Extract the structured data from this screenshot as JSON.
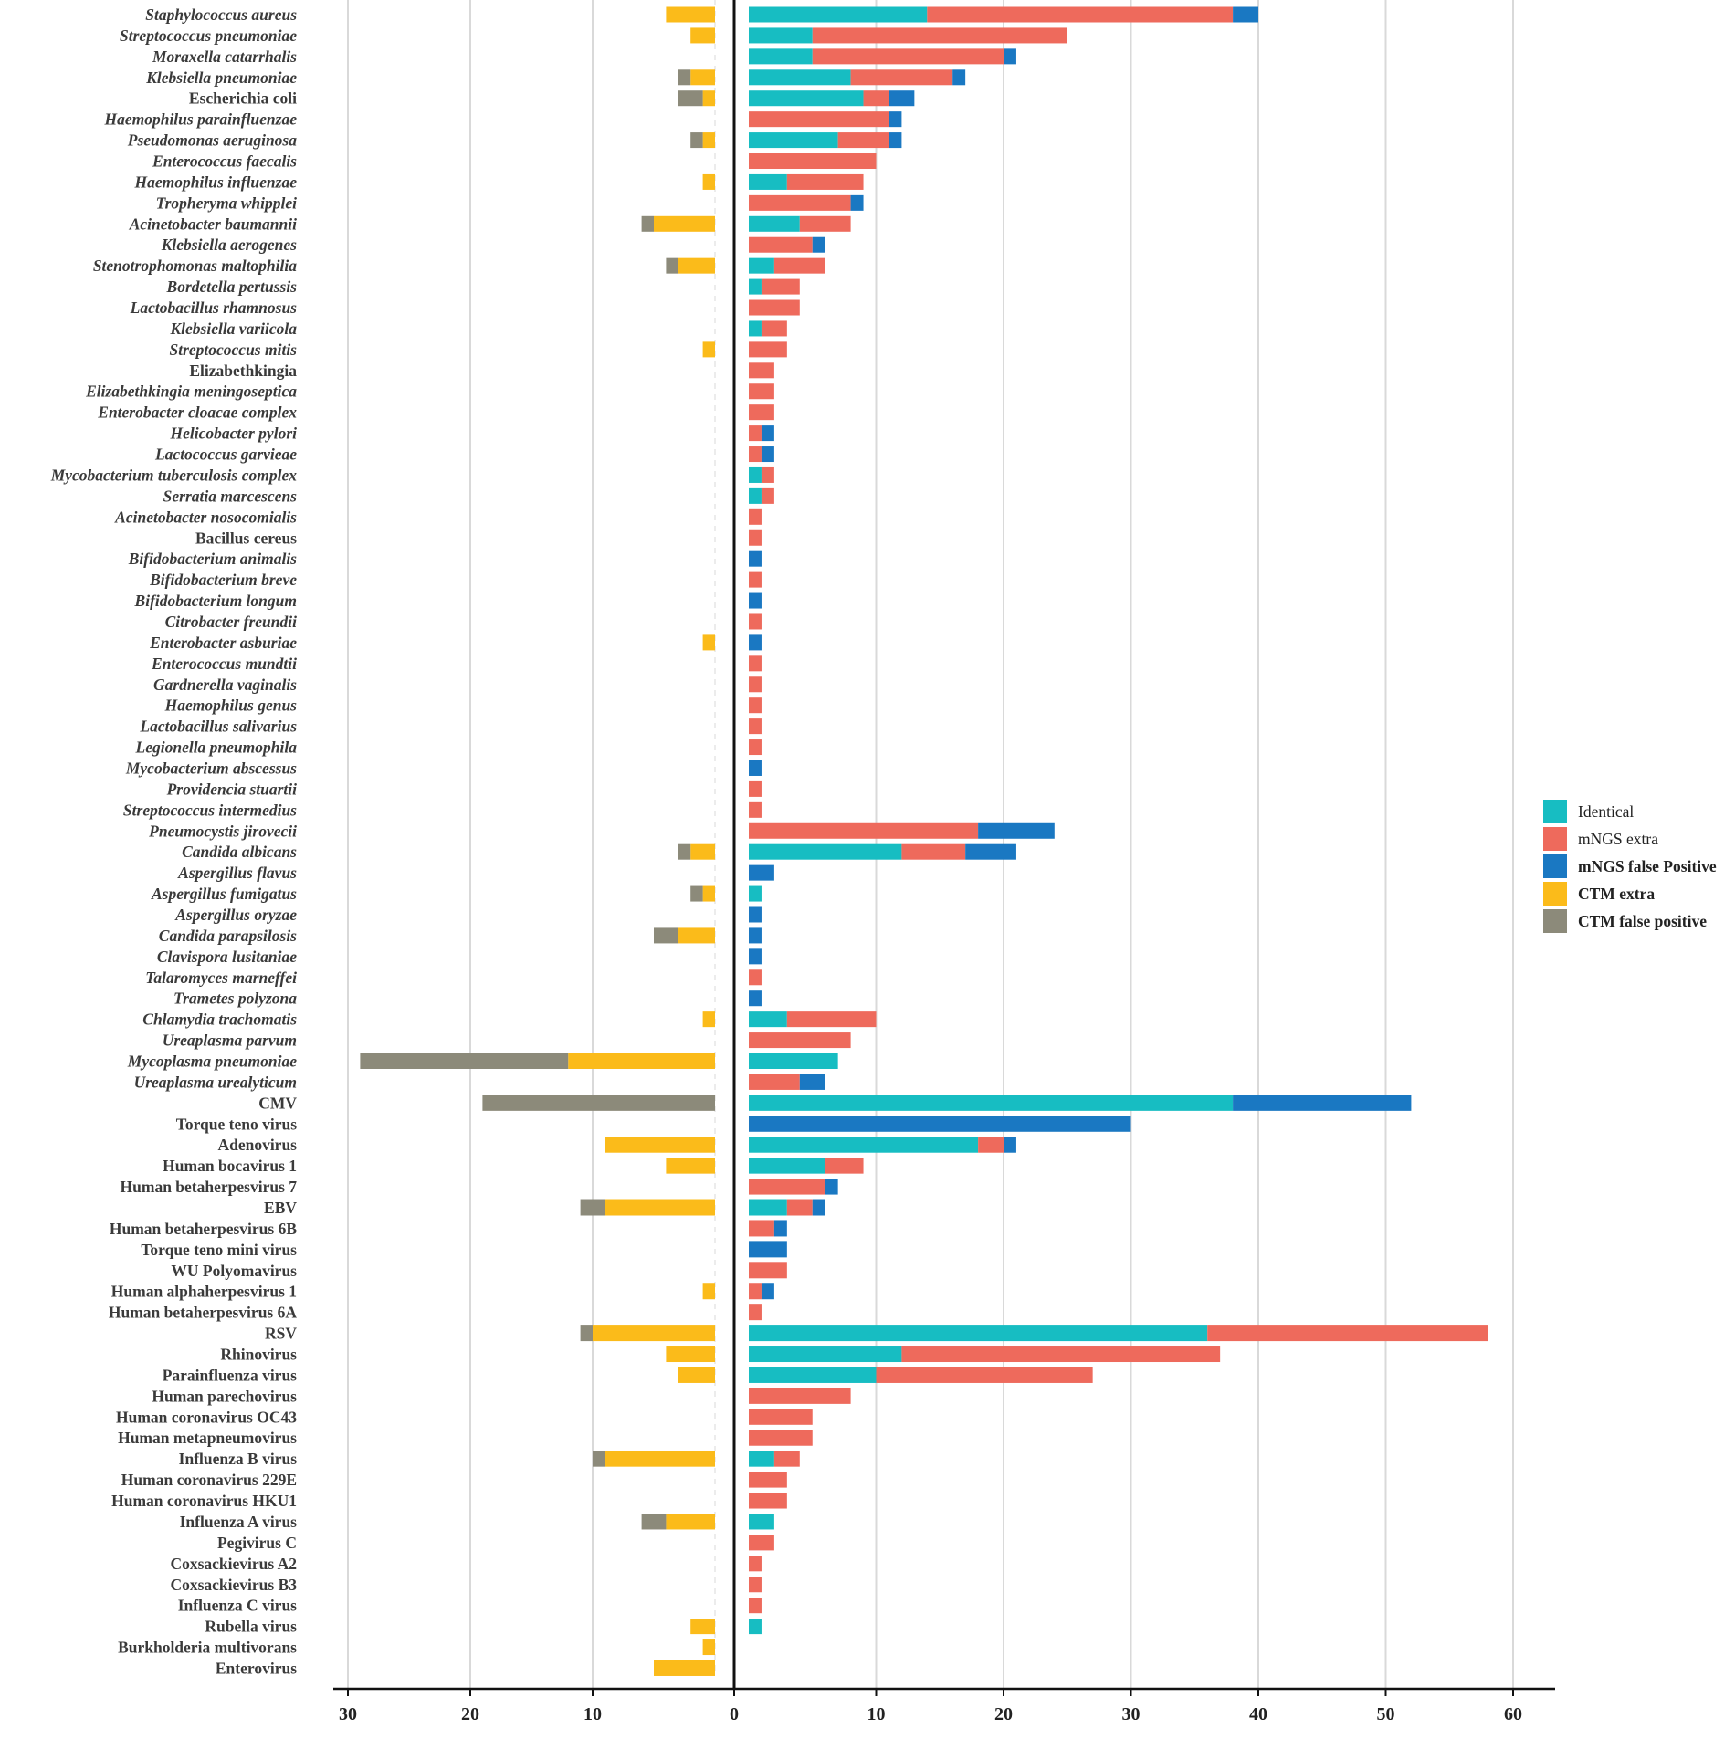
{
  "chart_data": {
    "type": "bar",
    "orientation": "horizontal",
    "stacked": true,
    "diverging": true,
    "title": "",
    "xlabel": "",
    "ylabel": "",
    "left_axis": {
      "ticks": [
        30,
        20,
        10,
        0
      ],
      "range": [
        30,
        0
      ]
    },
    "right_axis": {
      "ticks": [
        0,
        10,
        20,
        30,
        40,
        50,
        60
      ],
      "range": [
        0,
        62
      ]
    },
    "grid": true,
    "legend_position": "right",
    "legend": [
      {
        "key": "identical",
        "label": "Identical",
        "color": "#17bdc2"
      },
      {
        "key": "mngs_extra",
        "label": "mNGS extra",
        "color": "#ee6a5c"
      },
      {
        "key": "mngs_fp",
        "label": "mNGS false Positive",
        "color": "#1a78c2"
      },
      {
        "key": "ctm_extra",
        "label": "CTM extra",
        "color": "#fbbb1a"
      },
      {
        "key": "ctm_fp",
        "label": "CTM false positive",
        "color": "#8c8a7a"
      }
    ],
    "categories": [
      {
        "name": "Staphylococcus aureus",
        "italic": true,
        "identical": 14,
        "mngs_extra": 24,
        "mngs_fp": 2,
        "ctm_extra": 4,
        "ctm_fp": 0
      },
      {
        "name": "Streptococcus pneumoniae",
        "italic": true,
        "identical": 5,
        "mngs_extra": 20,
        "mngs_fp": 0,
        "ctm_extra": 2,
        "ctm_fp": 0
      },
      {
        "name": "Moraxella catarrhalis",
        "italic": true,
        "identical": 5,
        "mngs_extra": 15,
        "mngs_fp": 1,
        "ctm_extra": 0,
        "ctm_fp": 0
      },
      {
        "name": "Klebsiella pneumoniae",
        "italic": true,
        "identical": 8,
        "mngs_extra": 8,
        "mngs_fp": 1,
        "ctm_extra": 2,
        "ctm_fp": 1
      },
      {
        "name": "Escherichia coli",
        "italic": false,
        "identical": 9,
        "mngs_extra": 2,
        "mngs_fp": 2,
        "ctm_extra": 1,
        "ctm_fp": 2
      },
      {
        "name": "Haemophilus parainfluenzae",
        "italic": true,
        "identical": 0,
        "mngs_extra": 11,
        "mngs_fp": 1,
        "ctm_extra": 0,
        "ctm_fp": 0
      },
      {
        "name": "Pseudomonas aeruginosa",
        "italic": true,
        "identical": 7,
        "mngs_extra": 4,
        "mngs_fp": 1,
        "ctm_extra": 1,
        "ctm_fp": 1
      },
      {
        "name": "Enterococcus faecalis",
        "italic": true,
        "identical": 0,
        "mngs_extra": 10,
        "mngs_fp": 0,
        "ctm_extra": 0,
        "ctm_fp": 0
      },
      {
        "name": "Haemophilus influenzae",
        "italic": true,
        "identical": 3,
        "mngs_extra": 6,
        "mngs_fp": 0,
        "ctm_extra": 1,
        "ctm_fp": 0
      },
      {
        "name": "Tropheryma whipplei",
        "italic": true,
        "identical": 0,
        "mngs_extra": 8,
        "mngs_fp": 1,
        "ctm_extra": 0,
        "ctm_fp": 0
      },
      {
        "name": "Acinetobacter baumannii",
        "italic": true,
        "identical": 4,
        "mngs_extra": 4,
        "mngs_fp": 0,
        "ctm_extra": 5,
        "ctm_fp": 1
      },
      {
        "name": "Klebsiella aerogenes",
        "italic": true,
        "identical": 0,
        "mngs_extra": 5,
        "mngs_fp": 1,
        "ctm_extra": 0,
        "ctm_fp": 0
      },
      {
        "name": "Stenotrophomonas maltophilia",
        "italic": true,
        "identical": 2,
        "mngs_extra": 4,
        "mngs_fp": 0,
        "ctm_extra": 3,
        "ctm_fp": 1
      },
      {
        "name": "Bordetella pertussis",
        "italic": true,
        "identical": 1,
        "mngs_extra": 3,
        "mngs_fp": 0,
        "ctm_extra": 0,
        "ctm_fp": 0
      },
      {
        "name": "Lactobacillus rhamnosus",
        "italic": true,
        "identical": 0,
        "mngs_extra": 4,
        "mngs_fp": 0,
        "ctm_extra": 0,
        "ctm_fp": 0
      },
      {
        "name": "Klebsiella variicola",
        "italic": true,
        "identical": 1,
        "mngs_extra": 2,
        "mngs_fp": 0,
        "ctm_extra": 0,
        "ctm_fp": 0
      },
      {
        "name": "Streptococcus mitis",
        "italic": true,
        "identical": 0,
        "mngs_extra": 3,
        "mngs_fp": 0,
        "ctm_extra": 1,
        "ctm_fp": 0
      },
      {
        "name": "Elizabethkingia",
        "italic": false,
        "identical": 0,
        "mngs_extra": 2,
        "mngs_fp": 0,
        "ctm_extra": 0,
        "ctm_fp": 0
      },
      {
        "name": "Elizabethkingia meningoseptica",
        "italic": true,
        "identical": 0,
        "mngs_extra": 2,
        "mngs_fp": 0,
        "ctm_extra": 0,
        "ctm_fp": 0
      },
      {
        "name": "Enterobacter cloacae complex",
        "italic": true,
        "identical": 0,
        "mngs_extra": 2,
        "mngs_fp": 0,
        "ctm_extra": 0,
        "ctm_fp": 0
      },
      {
        "name": "Helicobacter pylori",
        "italic": true,
        "identical": 0,
        "mngs_extra": 1,
        "mngs_fp": 1,
        "ctm_extra": 0,
        "ctm_fp": 0
      },
      {
        "name": "Lactococcus garvieae",
        "italic": true,
        "identical": 0,
        "mngs_extra": 1,
        "mngs_fp": 1,
        "ctm_extra": 0,
        "ctm_fp": 0
      },
      {
        "name": "Mycobacterium tuberculosis complex",
        "italic": true,
        "identical": 1,
        "mngs_extra": 1,
        "mngs_fp": 0,
        "ctm_extra": 0,
        "ctm_fp": 0
      },
      {
        "name": "Serratia marcescens",
        "italic": true,
        "identical": 1,
        "mngs_extra": 1,
        "mngs_fp": 0,
        "ctm_extra": 0,
        "ctm_fp": 0
      },
      {
        "name": "Acinetobacter nosocomialis",
        "italic": true,
        "identical": 0,
        "mngs_extra": 1,
        "mngs_fp": 0,
        "ctm_extra": 0,
        "ctm_fp": 0
      },
      {
        "name": "Bacillus cereus",
        "italic": false,
        "identical": 0,
        "mngs_extra": 1,
        "mngs_fp": 0,
        "ctm_extra": 0,
        "ctm_fp": 0
      },
      {
        "name": "Bifidobacterium animalis",
        "italic": true,
        "identical": 0,
        "mngs_extra": 0,
        "mngs_fp": 1,
        "ctm_extra": 0,
        "ctm_fp": 0
      },
      {
        "name": "Bifidobacterium breve",
        "italic": true,
        "identical": 0,
        "mngs_extra": 1,
        "mngs_fp": 0,
        "ctm_extra": 0,
        "ctm_fp": 0
      },
      {
        "name": "Bifidobacterium longum",
        "italic": true,
        "identical": 0,
        "mngs_extra": 0,
        "mngs_fp": 1,
        "ctm_extra": 0,
        "ctm_fp": 0
      },
      {
        "name": "Citrobacter freundii",
        "italic": true,
        "identical": 0,
        "mngs_extra": 1,
        "mngs_fp": 0,
        "ctm_extra": 0,
        "ctm_fp": 0
      },
      {
        "name": "Enterobacter asburiae",
        "italic": true,
        "identical": 0,
        "mngs_extra": 0,
        "mngs_fp": 1,
        "ctm_extra": 1,
        "ctm_fp": 0
      },
      {
        "name": "Enterococcus mundtii",
        "italic": true,
        "identical": 0,
        "mngs_extra": 1,
        "mngs_fp": 0,
        "ctm_extra": 0,
        "ctm_fp": 0
      },
      {
        "name": "Gardnerella vaginalis",
        "italic": true,
        "identical": 0,
        "mngs_extra": 1,
        "mngs_fp": 0,
        "ctm_extra": 0,
        "ctm_fp": 0
      },
      {
        "name": "Haemophilus genus",
        "italic": true,
        "identical": 0,
        "mngs_extra": 1,
        "mngs_fp": 0,
        "ctm_extra": 0,
        "ctm_fp": 0
      },
      {
        "name": "Lactobacillus salivarius",
        "italic": true,
        "identical": 0,
        "mngs_extra": 1,
        "mngs_fp": 0,
        "ctm_extra": 0,
        "ctm_fp": 0
      },
      {
        "name": "Legionella pneumophila",
        "italic": true,
        "identical": 0,
        "mngs_extra": 1,
        "mngs_fp": 0,
        "ctm_extra": 0,
        "ctm_fp": 0
      },
      {
        "name": "Mycobacterium abscessus",
        "italic": true,
        "identical": 0,
        "mngs_extra": 0,
        "mngs_fp": 1,
        "ctm_extra": 0,
        "ctm_fp": 0
      },
      {
        "name": "Providencia stuartii",
        "italic": true,
        "identical": 0,
        "mngs_extra": 1,
        "mngs_fp": 0,
        "ctm_extra": 0,
        "ctm_fp": 0
      },
      {
        "name": "Streptococcus intermedius",
        "italic": true,
        "identical": 0,
        "mngs_extra": 1,
        "mngs_fp": 0,
        "ctm_extra": 0,
        "ctm_fp": 0
      },
      {
        "name": "Pneumocystis jirovecii",
        "italic": true,
        "identical": 0,
        "mngs_extra": 18,
        "mngs_fp": 6,
        "ctm_extra": 0,
        "ctm_fp": 0
      },
      {
        "name": "Candida albicans",
        "italic": true,
        "identical": 12,
        "mngs_extra": 5,
        "mngs_fp": 4,
        "ctm_extra": 2,
        "ctm_fp": 1
      },
      {
        "name": "Aspergillus flavus",
        "italic": true,
        "identical": 0,
        "mngs_extra": 0,
        "mngs_fp": 2,
        "ctm_extra": 0,
        "ctm_fp": 0
      },
      {
        "name": "Aspergillus fumigatus",
        "italic": true,
        "identical": 1,
        "mngs_extra": 0,
        "mngs_fp": 0,
        "ctm_extra": 1,
        "ctm_fp": 1
      },
      {
        "name": "Aspergillus oryzae",
        "italic": true,
        "identical": 0,
        "mngs_extra": 0,
        "mngs_fp": 1,
        "ctm_extra": 0,
        "ctm_fp": 0
      },
      {
        "name": "Candida parapsilosis",
        "italic": true,
        "identical": 0,
        "mngs_extra": 0,
        "mngs_fp": 1,
        "ctm_extra": 3,
        "ctm_fp": 2
      },
      {
        "name": "Clavispora lusitaniae",
        "italic": true,
        "identical": 0,
        "mngs_extra": 0,
        "mngs_fp": 1,
        "ctm_extra": 0,
        "ctm_fp": 0
      },
      {
        "name": "Talaromyces marneffei",
        "italic": true,
        "identical": 0,
        "mngs_extra": 1,
        "mngs_fp": 0,
        "ctm_extra": 0,
        "ctm_fp": 0
      },
      {
        "name": "Trametes polyzona",
        "italic": true,
        "identical": 0,
        "mngs_extra": 0,
        "mngs_fp": 1,
        "ctm_extra": 0,
        "ctm_fp": 0
      },
      {
        "name": "Chlamydia trachomatis",
        "italic": true,
        "identical": 3,
        "mngs_extra": 7,
        "mngs_fp": 0,
        "ctm_extra": 1,
        "ctm_fp": 0
      },
      {
        "name": "Ureaplasma parvum",
        "italic": true,
        "identical": 0,
        "mngs_extra": 8,
        "mngs_fp": 0,
        "ctm_extra": 0,
        "ctm_fp": 0
      },
      {
        "name": "Mycoplasma pneumoniae",
        "italic": true,
        "identical": 7,
        "mngs_extra": 0,
        "mngs_fp": 0,
        "ctm_extra": 12,
        "ctm_fp": 17
      },
      {
        "name": "Ureaplasma urealyticum",
        "italic": true,
        "identical": 0,
        "mngs_extra": 4,
        "mngs_fp": 2,
        "ctm_extra": 0,
        "ctm_fp": 0
      },
      {
        "name": "CMV",
        "italic": false,
        "identical": 38,
        "mngs_extra": 0,
        "mngs_fp": 14,
        "ctm_extra": 0,
        "ctm_fp": 19
      },
      {
        "name": "Torque teno virus",
        "italic": false,
        "identical": 0,
        "mngs_extra": 0,
        "mngs_fp": 30,
        "ctm_extra": 0,
        "ctm_fp": 0
      },
      {
        "name": "Adenovirus",
        "italic": false,
        "identical": 18,
        "mngs_extra": 2,
        "mngs_fp": 1,
        "ctm_extra": 9,
        "ctm_fp": 0
      },
      {
        "name": "Human bocavirus 1",
        "italic": false,
        "identical": 6,
        "mngs_extra": 3,
        "mngs_fp": 0,
        "ctm_extra": 4,
        "ctm_fp": 0
      },
      {
        "name": "Human betaherpesvirus 7",
        "italic": false,
        "identical": 0,
        "mngs_extra": 6,
        "mngs_fp": 1,
        "ctm_extra": 0,
        "ctm_fp": 0
      },
      {
        "name": "EBV",
        "italic": false,
        "identical": 3,
        "mngs_extra": 2,
        "mngs_fp": 1,
        "ctm_extra": 9,
        "ctm_fp": 2
      },
      {
        "name": "Human betaherpesvirus 6B",
        "italic": false,
        "identical": 0,
        "mngs_extra": 2,
        "mngs_fp": 1,
        "ctm_extra": 0,
        "ctm_fp": 0
      },
      {
        "name": "Torque teno mini virus",
        "italic": false,
        "identical": 0,
        "mngs_extra": 0,
        "mngs_fp": 3,
        "ctm_extra": 0,
        "ctm_fp": 0
      },
      {
        "name": "WU Polyomavirus",
        "italic": false,
        "identical": 0,
        "mngs_extra": 3,
        "mngs_fp": 0,
        "ctm_extra": 0,
        "ctm_fp": 0
      },
      {
        "name": "Human alphaherpesvirus 1",
        "italic": false,
        "identical": 0,
        "mngs_extra": 1,
        "mngs_fp": 1,
        "ctm_extra": 1,
        "ctm_fp": 0
      },
      {
        "name": "Human betaherpesvirus 6A",
        "italic": false,
        "identical": 0,
        "mngs_extra": 1,
        "mngs_fp": 0,
        "ctm_extra": 0,
        "ctm_fp": 0
      },
      {
        "name": "RSV",
        "italic": false,
        "identical": 36,
        "mngs_extra": 22,
        "mngs_fp": 0,
        "ctm_extra": 10,
        "ctm_fp": 1
      },
      {
        "name": "Rhinovirus",
        "italic": false,
        "identical": 12,
        "mngs_extra": 25,
        "mngs_fp": 0,
        "ctm_extra": 4,
        "ctm_fp": 0
      },
      {
        "name": "Parainfluenza virus",
        "italic": false,
        "identical": 10,
        "mngs_extra": 17,
        "mngs_fp": 0,
        "ctm_extra": 3,
        "ctm_fp": 0
      },
      {
        "name": "Human parechovirus",
        "italic": false,
        "identical": 0,
        "mngs_extra": 8,
        "mngs_fp": 0,
        "ctm_extra": 0,
        "ctm_fp": 0
      },
      {
        "name": "Human coronavirus OC43",
        "italic": false,
        "identical": 0,
        "mngs_extra": 5,
        "mngs_fp": 0,
        "ctm_extra": 0,
        "ctm_fp": 0
      },
      {
        "name": "Human metapneumovirus",
        "italic": false,
        "identical": 0,
        "mngs_extra": 5,
        "mngs_fp": 0,
        "ctm_extra": 0,
        "ctm_fp": 0
      },
      {
        "name": "Influenza B virus",
        "italic": false,
        "identical": 2,
        "mngs_extra": 2,
        "mngs_fp": 0,
        "ctm_extra": 9,
        "ctm_fp": 1
      },
      {
        "name": "Human coronavirus 229E",
        "italic": false,
        "identical": 0,
        "mngs_extra": 3,
        "mngs_fp": 0,
        "ctm_extra": 0,
        "ctm_fp": 0
      },
      {
        "name": "Human coronavirus HKU1",
        "italic": false,
        "identical": 0,
        "mngs_extra": 3,
        "mngs_fp": 0,
        "ctm_extra": 0,
        "ctm_fp": 0
      },
      {
        "name": "Influenza A virus",
        "italic": false,
        "identical": 2,
        "mngs_extra": 0,
        "mngs_fp": 0,
        "ctm_extra": 4,
        "ctm_fp": 2
      },
      {
        "name": "Pegivirus C",
        "italic": false,
        "identical": 0,
        "mngs_extra": 2,
        "mngs_fp": 0,
        "ctm_extra": 0,
        "ctm_fp": 0
      },
      {
        "name": "Coxsackievirus A2",
        "italic": false,
        "identical": 0,
        "mngs_extra": 1,
        "mngs_fp": 0,
        "ctm_extra": 0,
        "ctm_fp": 0
      },
      {
        "name": "Coxsackievirus B3",
        "italic": false,
        "identical": 0,
        "mngs_extra": 1,
        "mngs_fp": 0,
        "ctm_extra": 0,
        "ctm_fp": 0
      },
      {
        "name": "Influenza C virus",
        "italic": false,
        "identical": 0,
        "mngs_extra": 1,
        "mngs_fp": 0,
        "ctm_extra": 0,
        "ctm_fp": 0
      },
      {
        "name": "Rubella virus",
        "italic": false,
        "identical": 1,
        "mngs_extra": 0,
        "mngs_fp": 0,
        "ctm_extra": 2,
        "ctm_fp": 0
      },
      {
        "name": "Burkholderia multivorans",
        "italic": false,
        "identical": 0,
        "mngs_extra": 0,
        "mngs_fp": 0,
        "ctm_extra": 1,
        "ctm_fp": 0
      },
      {
        "name": "Enterovirus",
        "italic": false,
        "identical": 0,
        "mngs_extra": 0,
        "mngs_fp": 0,
        "ctm_extra": 5,
        "ctm_fp": 0
      }
    ]
  }
}
